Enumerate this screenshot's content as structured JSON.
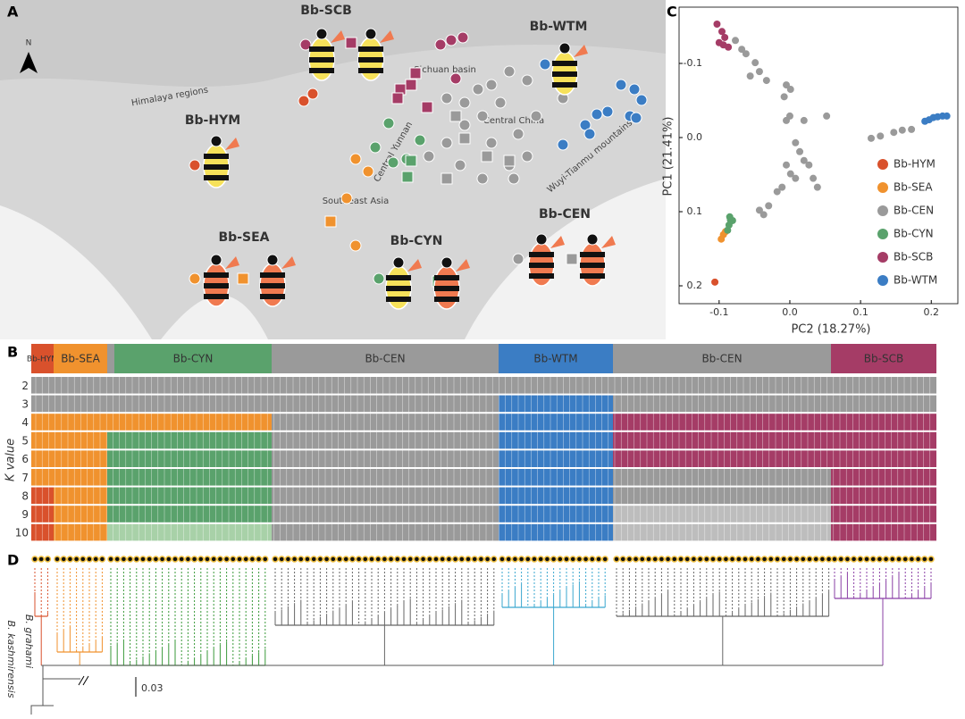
{
  "panels": [
    "A",
    "B",
    "C",
    "D"
  ],
  "map": {
    "north": "N",
    "groups": [
      {
        "name": "Bb-SCB",
        "color": "#a53c66"
      },
      {
        "name": "Bb-WTM",
        "color": "#3b7dc4"
      },
      {
        "name": "Bb-HYM",
        "color": "#d9512c"
      },
      {
        "name": "Bb-SEA",
        "color": "#f0922e"
      },
      {
        "name": "Bb-CYN",
        "color": "#5aa26c"
      },
      {
        "name": "Bb-CEN",
        "color": "#9a9a9a"
      }
    ],
    "places": [
      "Himalaya regions",
      "Sichuan basin",
      "Central China",
      "Central Yunnan",
      "Southeast Asia",
      "Wuyi-Tianmu mountains"
    ]
  },
  "structure": {
    "y_label": "K value",
    "headers": [
      "Bb-HYM",
      "Bb-SEA",
      "Bb-CYN",
      "Bb-CEN",
      "Bb-WTM",
      "Bb-CEN",
      "Bb-SCB"
    ],
    "header_colors": [
      "#d9512c",
      "#f0922e",
      "#5aa26c",
      "#9a9a9a",
      "#3b7dc4",
      "#9a9a9a",
      "#a53c66"
    ],
    "rows": [
      {
        "k": 2,
        "colors": [
          "#9a9a9a",
          "#9a9a9a",
          "#9a9a9a",
          "#9a9a9a",
          "#9a9a9a",
          "#9a9a9a",
          "#9a9a9a"
        ]
      },
      {
        "k": 3,
        "colors": [
          "#9a9a9a",
          "#9a9a9a",
          "#9a9a9a",
          "#9a9a9a",
          "#3b7dc4",
          "#9a9a9a",
          "#9a9a9a"
        ]
      },
      {
        "k": 4,
        "colors": [
          "#f0922e",
          "#f0922e",
          "#f0922e",
          "#9a9a9a",
          "#3b7dc4",
          "#a53c66",
          "#a53c66"
        ]
      },
      {
        "k": 5,
        "colors": [
          "#f0922e",
          "#f0922e",
          "#5aa26c",
          "#9a9a9a",
          "#3b7dc4",
          "#a53c66",
          "#a53c66"
        ]
      },
      {
        "k": 6,
        "colors": [
          "#f0922e",
          "#f0922e",
          "#5aa26c",
          "#9a9a9a",
          "#3b7dc4",
          "#a53c66",
          "#a53c66"
        ]
      },
      {
        "k": 7,
        "colors": [
          "#f0922e",
          "#f0922e",
          "#5aa26c",
          "#9a9a9a",
          "#3b7dc4",
          "#9a9a9a",
          "#a53c66"
        ]
      },
      {
        "k": 8,
        "colors": [
          "#d9512c",
          "#f0922e",
          "#5aa26c",
          "#9a9a9a",
          "#3b7dc4",
          "#9a9a9a",
          "#a53c66"
        ]
      },
      {
        "k": 9,
        "colors": [
          "#d9512c",
          "#f0922e",
          "#5aa26c",
          "#9a9a9a",
          "#3b7dc4",
          "#bdbdbd",
          "#a53c66"
        ]
      },
      {
        "k": 10,
        "colors": [
          "#d9512c",
          "#f0922e",
          "#a8d1a8",
          "#9a9a9a",
          "#3b7dc4",
          "#bdbdbd",
          "#a53c66"
        ]
      }
    ]
  },
  "tree": {
    "outgroups": [
      "B. grahami",
      "B. kashmirensis"
    ],
    "scale": "0.03"
  },
  "chart_data": {
    "type": "scatter",
    "x_label": "PC2 (18.27%)",
    "y_label": "PC1 (21.41%)",
    "xlim": [
      -0.12,
      0.23
    ],
    "ylim": [
      0.21,
      -0.16
    ],
    "xticks": [
      -0.1,
      {
        "value": 0,
        "label": "0.0"
      },
      0.1,
      0.2
    ],
    "yticks": [
      -0.1,
      {
        "value": 0,
        "label": "0.0"
      },
      0.1,
      0.2
    ],
    "legend": "right",
    "series": [
      {
        "name": "Bb-HYM",
        "color": "#d9512c",
        "x": [
          -0.106
        ],
        "y": [
          0.195
        ]
      },
      {
        "name": "Bb-SEA",
        "color": "#f0922e",
        "x": [
          -0.097,
          -0.094,
          -0.091
        ],
        "y": [
          0.137,
          0.131,
          0.127
        ]
      },
      {
        "name": "Bb-CEN",
        "color": "#9a9a9a",
        "x": [
          -0.077,
          -0.068,
          -0.062,
          -0.049,
          -0.043,
          -0.033,
          -0.056,
          -0.005,
          0.001,
          -0.008,
          0.0,
          -0.005,
          0.008,
          0.014,
          0.02,
          0.027,
          -0.005,
          0.001,
          0.008,
          0.033,
          0.039,
          -0.018,
          -0.011,
          -0.03,
          -0.037,
          -0.043,
          0.052,
          0.115,
          0.128,
          0.147,
          0.159,
          0.172,
          0.02
        ],
        "y": [
          -0.131,
          -0.119,
          -0.113,
          -0.101,
          -0.089,
          -0.077,
          -0.083,
          -0.071,
          -0.065,
          -0.055,
          -0.029,
          -0.023,
          0.007,
          0.019,
          0.031,
          0.037,
          0.037,
          0.049,
          0.055,
          0.055,
          0.067,
          0.073,
          0.067,
          0.092,
          0.104,
          0.098,
          -0.029,
          0.001,
          -0.002,
          -0.007,
          -0.01,
          -0.011,
          -0.023
        ]
      },
      {
        "name": "Bb-CYN",
        "color": "#5aa26c",
        "x": [
          -0.088,
          -0.086,
          -0.084,
          -0.085,
          -0.081
        ],
        "y": [
          0.125,
          0.118,
          0.111,
          0.107,
          0.112
        ]
      },
      {
        "name": "Bb-SCB",
        "color": "#a53c66",
        "x": [
          -0.103,
          -0.096,
          -0.092,
          -0.094,
          -0.087,
          -0.1
        ],
        "y": [
          -0.153,
          -0.143,
          -0.135,
          -0.125,
          -0.122,
          -0.128
        ]
      },
      {
        "name": "Bb-WTM",
        "color": "#3b7dc4",
        "x": [
          0.197,
          0.203,
          0.209,
          0.216,
          0.222,
          0.191
        ],
        "y": [
          -0.024,
          -0.027,
          -0.028,
          -0.029,
          -0.029,
          -0.022
        ]
      }
    ]
  }
}
